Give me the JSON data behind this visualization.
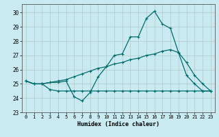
{
  "xlabel": "Humidex (Indice chaleur)",
  "xlim": [
    -0.5,
    23.5
  ],
  "ylim": [
    23.0,
    30.6
  ],
  "yticks": [
    23,
    24,
    25,
    26,
    27,
    28,
    29,
    30
  ],
  "xticks": [
    0,
    1,
    2,
    3,
    4,
    5,
    6,
    7,
    8,
    9,
    10,
    11,
    12,
    13,
    14,
    15,
    16,
    17,
    18,
    19,
    20,
    21,
    22,
    23
  ],
  "bg_color": "#c8eaf0",
  "grid_color": "#b0c8cc",
  "line_color": "#006b6b",
  "line1_x": [
    0,
    1,
    2,
    3,
    4,
    5,
    6,
    7,
    8,
    9,
    10,
    11,
    12,
    13,
    14,
    15,
    16,
    17,
    18,
    19,
    20,
    21,
    22,
    23
  ],
  "line1_y": [
    25.2,
    25.0,
    25.0,
    25.1,
    25.2,
    25.3,
    25.5,
    25.7,
    25.9,
    26.1,
    26.2,
    26.4,
    26.5,
    26.7,
    26.8,
    27.0,
    27.1,
    27.3,
    27.4,
    27.2,
    26.5,
    25.6,
    25.0,
    24.5
  ],
  "line2_x": [
    0,
    1,
    2,
    3,
    4,
    5,
    6,
    7,
    8,
    9,
    10,
    11,
    12,
    13,
    14,
    15,
    16,
    17,
    18,
    19,
    20,
    21,
    22,
    23
  ],
  "line2_y": [
    25.2,
    25.0,
    25.0,
    25.1,
    25.1,
    25.2,
    24.1,
    23.8,
    24.4,
    25.5,
    26.2,
    27.0,
    27.1,
    28.3,
    28.3,
    29.6,
    30.1,
    29.2,
    28.9,
    27.2,
    25.6,
    25.0,
    24.5,
    24.5
  ],
  "line3_x": [
    0,
    1,
    2,
    3,
    4,
    5,
    6,
    7,
    8,
    9,
    10,
    11,
    12,
    13,
    14,
    15,
    16,
    17,
    18,
    19,
    20,
    21,
    22,
    23
  ],
  "line3_y": [
    25.2,
    25.0,
    25.0,
    24.6,
    24.5,
    24.5,
    24.5,
    24.5,
    24.5,
    24.5,
    24.5,
    24.5,
    24.5,
    24.5,
    24.5,
    24.5,
    24.5,
    24.5,
    24.5,
    24.5,
    24.5,
    24.5,
    24.5,
    24.5
  ]
}
